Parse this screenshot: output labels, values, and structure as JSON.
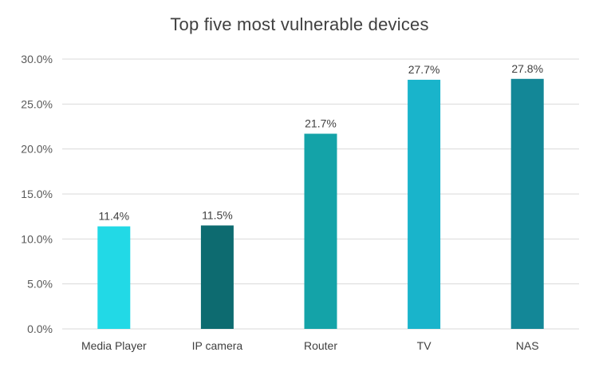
{
  "chart_data": {
    "type": "bar",
    "title": "Top five most vulnerable devices",
    "xlabel": "",
    "ylabel": "",
    "categories": [
      "Media Player",
      "IP camera",
      "Router",
      "TV",
      "NAS"
    ],
    "values": [
      11.4,
      11.5,
      21.7,
      27.7,
      27.8
    ],
    "data_labels": [
      "11.4%",
      "11.5%",
      "21.7%",
      "27.7%",
      "27.8%"
    ],
    "ylim": [
      0,
      30
    ],
    "y_ticks": [
      0,
      5,
      10,
      15,
      20,
      25,
      30
    ],
    "y_tick_labels": [
      "0.0%",
      "5.0%",
      "10.0%",
      "15.0%",
      "20.0%",
      "25.0%",
      "30.0%"
    ],
    "bar_colors": [
      "#22d9e6",
      "#0d6b70",
      "#14a3a8",
      "#19b4cb",
      "#138797"
    ],
    "grid": true,
    "legend": "none"
  }
}
